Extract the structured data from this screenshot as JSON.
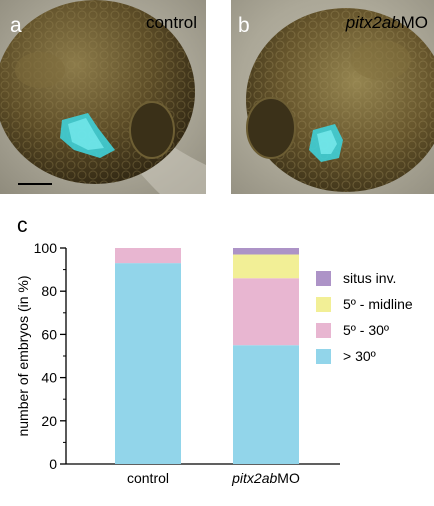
{
  "panels": [
    {
      "letter": "a",
      "condition": "control"
    },
    {
      "letter": "b",
      "condition_italic": "pitx2ab",
      "condition_suffix": "MO"
    }
  ],
  "chart_letter": "c",
  "chart_data": {
    "type": "bar",
    "stacked": true,
    "categories": [
      "control",
      "pitx2abMO"
    ],
    "category_labels": [
      {
        "plain": "control"
      },
      {
        "italic": "pitx2ab",
        "suffix": "MO"
      }
    ],
    "series": [
      {
        "name": "> 30º",
        "color": "#92d5ea",
        "values": [
          93,
          55
        ]
      },
      {
        "name": "5º - 30º",
        "color": "#e8b6d1",
        "values": [
          7,
          31
        ]
      },
      {
        "name": "5º - midline",
        "color": "#f2ef96",
        "values": [
          0,
          11
        ]
      },
      {
        "name": "situs inv.",
        "color": "#ad93c7",
        "values": [
          0,
          3
        ]
      }
    ],
    "ylabel": "number of embryos (in %)",
    "ylim": [
      0,
      100
    ],
    "yticks": [
      0,
      20,
      40,
      60,
      80,
      100
    ],
    "legend_position": "right"
  }
}
